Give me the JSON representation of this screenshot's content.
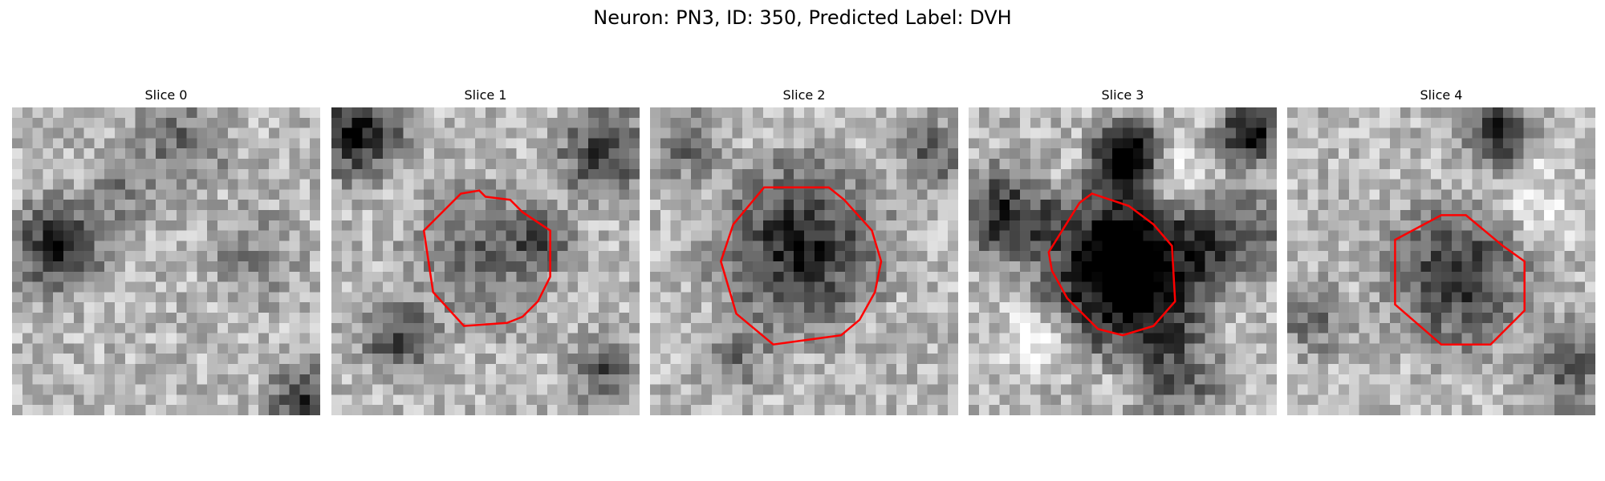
{
  "figure": {
    "title": "Neuron: PN3, ID: 350, Predicted Label: DVH"
  },
  "panels": [
    {
      "title": "Slice 0",
      "has_contour": false,
      "tone": "mid"
    },
    {
      "title": "Slice 1",
      "has_contour": true,
      "tone": "mid"
    },
    {
      "title": "Slice 2",
      "has_contour": true,
      "tone": "mid"
    },
    {
      "title": "Slice 3",
      "has_contour": true,
      "tone": "dark-core"
    },
    {
      "title": "Slice 4",
      "has_contour": true,
      "tone": "mid"
    }
  ],
  "colors": {
    "contour": "#ff0000",
    "background": "#ffffff"
  }
}
